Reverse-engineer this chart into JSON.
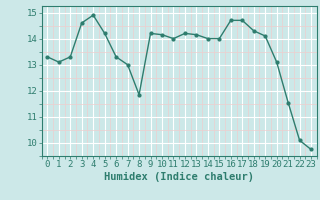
{
  "x": [
    0,
    1,
    2,
    3,
    4,
    5,
    6,
    7,
    8,
    9,
    10,
    11,
    12,
    13,
    14,
    15,
    16,
    17,
    18,
    19,
    20,
    21,
    22,
    23
  ],
  "y": [
    13.3,
    13.1,
    13.3,
    14.6,
    14.9,
    14.2,
    13.3,
    13.0,
    11.85,
    14.2,
    14.15,
    14.0,
    14.2,
    14.15,
    14.0,
    14.0,
    14.7,
    14.7,
    14.3,
    14.1,
    13.1,
    11.55,
    10.1,
    9.75
  ],
  "xlabel": "Humidex (Indice chaleur)",
  "xlim": [
    -0.5,
    23.5
  ],
  "ylim": [
    9.5,
    15.25
  ],
  "yticks": [
    10,
    11,
    12,
    13,
    14,
    15
  ],
  "xticks": [
    0,
    1,
    2,
    3,
    4,
    5,
    6,
    7,
    8,
    9,
    10,
    11,
    12,
    13,
    14,
    15,
    16,
    17,
    18,
    19,
    20,
    21,
    22,
    23
  ],
  "line_color": "#2e7d6e",
  "bg_color": "#cce8e8",
  "grid_major_color": "#ffffff",
  "grid_minor_color": "#eecece",
  "label_fontsize": 7.5,
  "tick_fontsize": 6.5
}
